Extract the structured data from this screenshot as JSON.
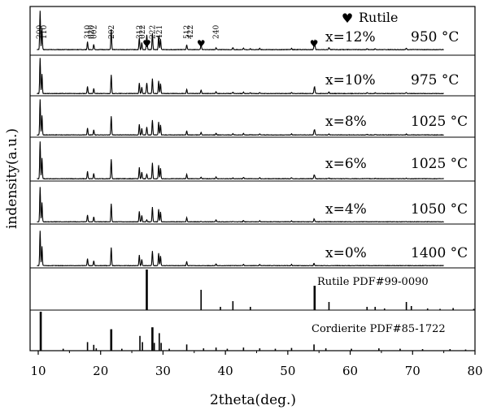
{
  "chart_data": {
    "type": "line",
    "title": "",
    "xlabel": "2theta(deg.)",
    "ylabel": "indensity(a.u.)",
    "xlim": [
      9,
      80
    ],
    "xticks": [
      10,
      20,
      30,
      40,
      50,
      60,
      70,
      80
    ],
    "tick_labels": [
      "10",
      "20",
      "30",
      "40",
      "50",
      "60",
      "70",
      "80"
    ],
    "legend": {
      "symbol": "♥",
      "label": "Rutile",
      "position": "top-right"
    },
    "hkl_labels": [
      {
        "text": "200",
        "x": 10.2
      },
      {
        "text": "110",
        "x": 10.9
      },
      {
        "text": "310",
        "x": 17.9
      },
      {
        "text": "020",
        "x": 18.5
      },
      {
        "text": "002",
        "x": 18.9
      },
      {
        "text": "202",
        "x": 21.7
      },
      {
        "text": "312",
        "x": 26.2
      },
      {
        "text": "022",
        "x": 26.7
      },
      {
        "text": "222",
        "x": 28.3
      },
      {
        "text": "421",
        "x": 29.4
      },
      {
        "text": "512",
        "x": 33.8
      },
      {
        "text": "422",
        "x": 34.4
      },
      {
        "text": "240",
        "x": 38.5
      }
    ],
    "rutile_markers": [
      27.4,
      36.1,
      54.2
    ],
    "series": [
      {
        "name": "x=12%",
        "temp": "950  °C",
        "rutile_scale": 0.38
      },
      {
        "name": "x=10%",
        "temp": "975  °C",
        "rutile_scale": 0.3
      },
      {
        "name": "x=8%",
        "temp": "1025  °C",
        "rutile_scale": 0.22
      },
      {
        "name": "x=6%",
        "temp": "1025  °C",
        "rutile_scale": 0.12
      },
      {
        "name": "x=4%",
        "temp": "1050  °C",
        "rutile_scale": 0.05
      },
      {
        "name": "x=0%",
        "temp": "1400  °C",
        "rutile_scale": 0.0
      }
    ],
    "peaks": [
      {
        "x": 10.3,
        "h": 1.0
      },
      {
        "x": 10.6,
        "h": 0.55
      },
      {
        "x": 17.9,
        "h": 0.2
      },
      {
        "x": 18.9,
        "h": 0.14
      },
      {
        "x": 21.7,
        "h": 0.52
      },
      {
        "x": 26.2,
        "h": 0.3
      },
      {
        "x": 26.6,
        "h": 0.18
      },
      {
        "x": 28.3,
        "h": 0.42
      },
      {
        "x": 29.3,
        "h": 0.36
      },
      {
        "x": 29.6,
        "h": 0.28
      },
      {
        "x": 33.8,
        "h": 0.12
      },
      {
        "x": 38.5,
        "h": 0.05
      },
      {
        "x": 42.9,
        "h": 0.04
      },
      {
        "x": 45.5,
        "h": 0.03
      },
      {
        "x": 50.6,
        "h": 0.03
      },
      {
        "x": 54.2,
        "h": 0.07
      }
    ],
    "rutile_peaks": [
      {
        "x": 27.4,
        "h": 1.0
      },
      {
        "x": 36.1,
        "h": 0.32
      },
      {
        "x": 41.2,
        "h": 0.14
      },
      {
        "x": 44.0,
        "h": 0.06
      },
      {
        "x": 54.3,
        "h": 0.55
      },
      {
        "x": 56.6,
        "h": 0.14
      },
      {
        "x": 62.7,
        "h": 0.07
      },
      {
        "x": 64.0,
        "h": 0.06
      },
      {
        "x": 69.0,
        "h": 0.1
      }
    ],
    "references": [
      {
        "label": "Rutile PDF#99-0090",
        "lines": [
          {
            "x": 27.4,
            "h": 1.0
          },
          {
            "x": 36.1,
            "h": 0.5
          },
          {
            "x": 39.2,
            "h": 0.08
          },
          {
            "x": 41.2,
            "h": 0.22
          },
          {
            "x": 44.0,
            "h": 0.08
          },
          {
            "x": 54.3,
            "h": 0.6
          },
          {
            "x": 56.6,
            "h": 0.2
          },
          {
            "x": 62.7,
            "h": 0.08
          },
          {
            "x": 64.0,
            "h": 0.08
          },
          {
            "x": 65.5,
            "h": 0.04
          },
          {
            "x": 69.0,
            "h": 0.2
          },
          {
            "x": 69.8,
            "h": 0.1
          },
          {
            "x": 72.4,
            "h": 0.04
          },
          {
            "x": 74.4,
            "h": 0.03
          },
          {
            "x": 76.5,
            "h": 0.05
          },
          {
            "x": 79.8,
            "h": 0.03
          }
        ]
      },
      {
        "label": "Cordierite PDF#85-1722",
        "lines": [
          {
            "x": 10.4,
            "h": 1.0
          },
          {
            "x": 14.0,
            "h": 0.05
          },
          {
            "x": 17.9,
            "h": 0.22
          },
          {
            "x": 18.9,
            "h": 0.15
          },
          {
            "x": 19.3,
            "h": 0.06
          },
          {
            "x": 21.7,
            "h": 0.55
          },
          {
            "x": 23.4,
            "h": 0.05
          },
          {
            "x": 26.3,
            "h": 0.38
          },
          {
            "x": 26.7,
            "h": 0.22
          },
          {
            "x": 28.3,
            "h": 0.6
          },
          {
            "x": 28.6,
            "h": 0.2
          },
          {
            "x": 29.4,
            "h": 0.45
          },
          {
            "x": 29.7,
            "h": 0.2
          },
          {
            "x": 31.0,
            "h": 0.05
          },
          {
            "x": 33.8,
            "h": 0.16
          },
          {
            "x": 36.5,
            "h": 0.06
          },
          {
            "x": 38.5,
            "h": 0.08
          },
          {
            "x": 40.3,
            "h": 0.05
          },
          {
            "x": 42.9,
            "h": 0.08
          },
          {
            "x": 45.5,
            "h": 0.06
          },
          {
            "x": 48.0,
            "h": 0.05
          },
          {
            "x": 50.6,
            "h": 0.07
          },
          {
            "x": 54.2,
            "h": 0.16
          },
          {
            "x": 56.1,
            "h": 0.06
          },
          {
            "x": 60.2,
            "h": 0.05
          },
          {
            "x": 64.6,
            "h": 0.06
          },
          {
            "x": 68.0,
            "h": 0.05
          },
          {
            "x": 71.6,
            "h": 0.04
          },
          {
            "x": 76.0,
            "h": 0.04
          },
          {
            "x": 78.5,
            "h": 0.03
          }
        ]
      }
    ]
  }
}
